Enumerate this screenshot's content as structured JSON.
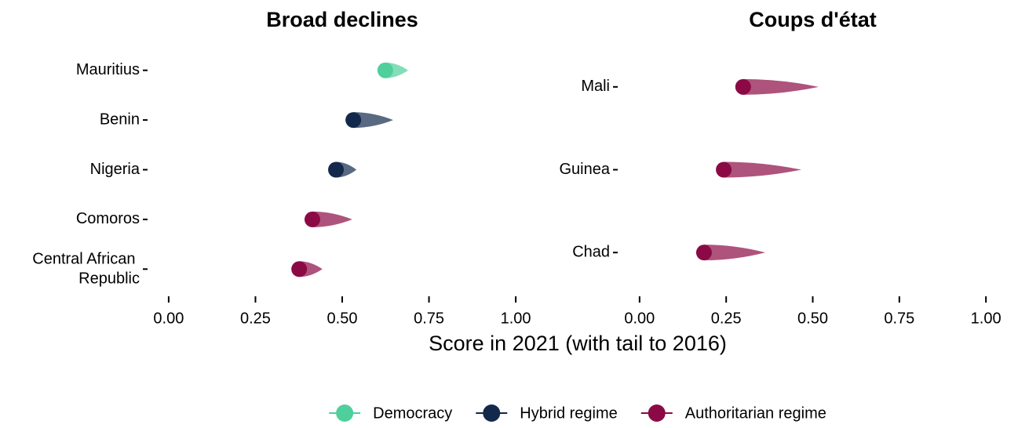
{
  "axis_label": "Score in 2021 (with tail to 2016)",
  "legend": [
    {
      "name": "Democracy",
      "color": "#4fcf9c"
    },
    {
      "name": "Hybrid regime",
      "color": "#13294b"
    },
    {
      "name": "Authoritarian regime",
      "color": "#8b0a45"
    }
  ],
  "chart_data": [
    {
      "type": "comet",
      "title": "Broad declines",
      "categories": [
        "Mauritius",
        "Benin",
        "Nigeria",
        "Comoros",
        "Central African Republic"
      ],
      "regimes": [
        "Democracy",
        "Hybrid regime",
        "Hybrid regime",
        "Authoritarian regime",
        "Authoritarian regime"
      ],
      "values": [
        0.624,
        0.532,
        0.482,
        0.414,
        0.376
      ],
      "tail_values": [
        0.69,
        0.647,
        0.541,
        0.529,
        0.443
      ],
      "xlim": [
        -0.045,
        1.045
      ],
      "xticks": [
        {
          "value": 0,
          "label": "0.00"
        },
        {
          "value": 0.25,
          "label": "0.25"
        },
        {
          "value": 0.5,
          "label": "0.50"
        },
        {
          "value": 0.75,
          "label": "0.75"
        },
        {
          "value": 1,
          "label": "1.00"
        }
      ]
    },
    {
      "type": "comet",
      "title": "Coups d'état",
      "categories": [
        "Mali",
        "Guinea",
        "Chad"
      ],
      "regimes": [
        "Authoritarian regime",
        "Authoritarian regime",
        "Authoritarian regime"
      ],
      "values": [
        0.299,
        0.243,
        0.186
      ],
      "tail_values": [
        0.517,
        0.467,
        0.363
      ],
      "xlim": [
        -0.045,
        1.045
      ],
      "xticks": [
        {
          "value": 0,
          "label": "0.00"
        },
        {
          "value": 0.25,
          "label": "0.25"
        },
        {
          "value": 0.5,
          "label": "0.50"
        },
        {
          "value": 0.75,
          "label": "0.75"
        },
        {
          "value": 1,
          "label": "1.00"
        }
      ]
    }
  ]
}
